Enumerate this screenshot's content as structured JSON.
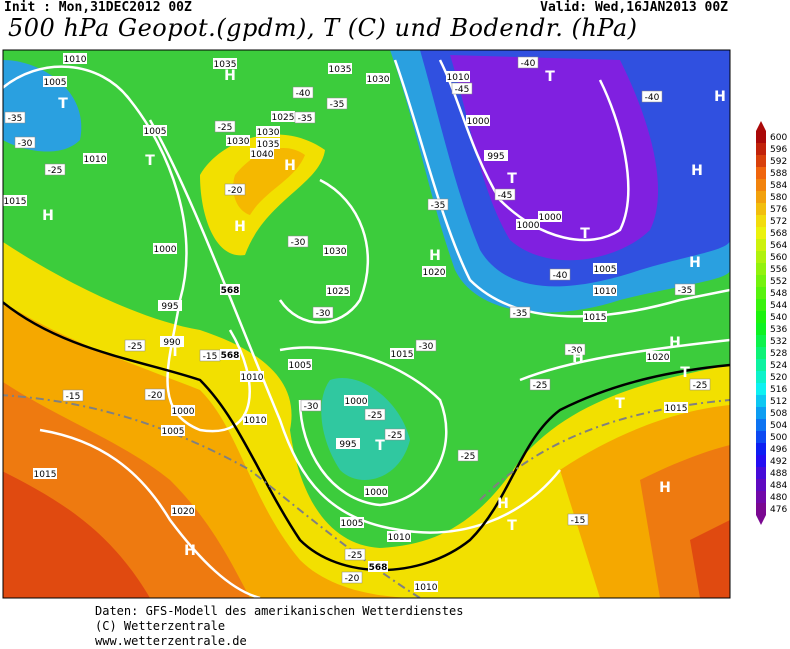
{
  "header": {
    "init": "Init : Mon,31DEC2012 00Z",
    "valid": "Valid: Wed,16JAN2013 00Z",
    "title": "500 hPa Geopot.(gpdm), T (C) und Bodendr. (hPa)"
  },
  "colorbar": {
    "labels": [
      "600",
      "596",
      "592",
      "588",
      "584",
      "580",
      "576",
      "572",
      "568",
      "564",
      "560",
      "556",
      "552",
      "548",
      "544",
      "540",
      "536",
      "532",
      "528",
      "524",
      "520",
      "516",
      "512",
      "508",
      "504",
      "500",
      "496",
      "492",
      "488",
      "484",
      "480",
      "476"
    ]
  },
  "map_labels": {
    "isobars": [
      "1010",
      "1005",
      "1010",
      "1015",
      "1005",
      "1030",
      "1035",
      "1030",
      "1035",
      "1040",
      "1025",
      "1035",
      "1030",
      "1010",
      "1000",
      "995",
      "1000",
      "1000",
      "1005",
      "1010",
      "1015",
      "1020",
      "1015",
      "1020",
      "1000",
      "1030",
      "1025",
      "995",
      "990",
      "1015",
      "1010",
      "1005",
      "1000",
      "1005",
      "1010",
      "1000",
      "995",
      "1000",
      "1015",
      "1020",
      "1005",
      "1010",
      "1010"
    ],
    "temperatures": [
      "-35",
      "-30",
      "-25",
      "-25",
      "-40",
      "-35",
      "-35",
      "-20",
      "-30",
      "-30",
      "-30",
      "-35",
      "-40",
      "-45",
      "-45",
      "-40",
      "-40",
      "-35",
      "-35",
      "-30",
      "-25",
      "-25",
      "-25",
      "-15",
      "-20",
      "-15",
      "-30",
      "-25",
      "-25",
      "-25",
      "-15",
      "-25",
      "-20"
    ],
    "centers": [
      "H",
      "T",
      "T",
      "H",
      "H",
      "H",
      "T",
      "H",
      "T",
      "T",
      "H",
      "H",
      "H",
      "T",
      "H",
      "H",
      "T",
      "T",
      "H",
      "H",
      "T",
      "H",
      "T"
    ],
    "contour_568": [
      "568",
      "568",
      "568"
    ]
  },
  "footer": [
    "Daten: GFS-Modell des amerikanischen Wetterdienstes",
    "(C) Wetterzentrale",
    "www.wetterzentrale.de"
  ]
}
